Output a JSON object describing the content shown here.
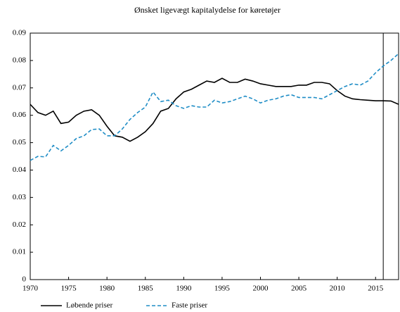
{
  "chart_data": {
    "type": "line",
    "title": "Ønsket ligevægt kapitalydelse for køretøjer",
    "x": [
      1970,
      1971,
      1972,
      1973,
      1974,
      1975,
      1976,
      1977,
      1978,
      1979,
      1980,
      1981,
      1982,
      1983,
      1984,
      1985,
      1986,
      1987,
      1988,
      1989,
      1990,
      1991,
      1992,
      1993,
      1994,
      1995,
      1996,
      1997,
      1998,
      1999,
      2000,
      2001,
      2002,
      2003,
      2004,
      2005,
      2006,
      2007,
      2008,
      2009,
      2010,
      2011,
      2012,
      2013,
      2014,
      2015,
      2016,
      2017,
      2018
    ],
    "series": [
      {
        "name": "Løbende priser",
        "color": "#000000",
        "dash": false,
        "values": [
          0.064,
          0.061,
          0.06,
          0.0615,
          0.057,
          0.0575,
          0.06,
          0.0615,
          0.062,
          0.06,
          0.056,
          0.0525,
          0.052,
          0.0505,
          0.052,
          0.054,
          0.057,
          0.0615,
          0.0625,
          0.066,
          0.0685,
          0.0695,
          0.071,
          0.0725,
          0.072,
          0.0735,
          0.072,
          0.072,
          0.0732,
          0.0725,
          0.0715,
          0.071,
          0.0705,
          0.0705,
          0.0705,
          0.071,
          0.071,
          0.072,
          0.072,
          0.0715,
          0.069,
          0.067,
          0.066,
          0.0657,
          0.0655,
          0.0653,
          0.0653,
          0.0652,
          0.064
        ]
      },
      {
        "name": "Faste priser",
        "color": "#1f8dc6",
        "dash": true,
        "values": [
          0.0435,
          0.045,
          0.0448,
          0.049,
          0.047,
          0.049,
          0.0515,
          0.0525,
          0.0548,
          0.055,
          0.0525,
          0.0525,
          0.055,
          0.0585,
          0.061,
          0.063,
          0.0685,
          0.065,
          0.0655,
          0.0635,
          0.0625,
          0.0635,
          0.063,
          0.063,
          0.0655,
          0.0645,
          0.065,
          0.066,
          0.067,
          0.066,
          0.0645,
          0.0655,
          0.066,
          0.067,
          0.0675,
          0.0665,
          0.0665,
          0.0665,
          0.066,
          0.0675,
          0.069,
          0.0705,
          0.0715,
          0.071,
          0.0725,
          0.0755,
          0.078,
          0.08,
          0.0825
        ]
      }
    ],
    "vline": 2016,
    "xlim": [
      1970,
      2018
    ],
    "xticks": [
      1970,
      1975,
      1980,
      1985,
      1990,
      1995,
      2000,
      2005,
      2010,
      2015
    ],
    "ylim": [
      0,
      0.09
    ],
    "yticks": [
      0,
      0.01,
      0.02,
      0.03,
      0.04,
      0.05,
      0.06,
      0.07,
      0.08,
      0.09
    ]
  }
}
